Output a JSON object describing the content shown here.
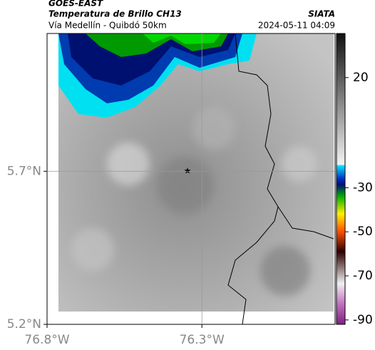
{
  "header": {
    "title": "GOES-EAST",
    "subtitle": "Temperatura de Brillo CH13",
    "source": "SIATA",
    "region": "Vía Medellín - Quibdó 50km",
    "timestamp": "2024-05-11 04:09"
  },
  "map": {
    "xlim": [
      -76.8,
      -75.87
    ],
    "ylim": [
      5.2,
      6.15
    ],
    "xticks": [
      {
        "value": -76.8,
        "label": "76.8°W"
      },
      {
        "value": -76.3,
        "label": "76.3°W"
      }
    ],
    "yticks": [
      {
        "value": 5.2,
        "label": "5.2°N"
      },
      {
        "value": 5.7,
        "label": "5.7°N"
      }
    ],
    "colorbar": {
      "lim": [
        -92,
        40
      ],
      "ticks": [
        20,
        -30,
        -50,
        -70,
        -90
      ]
    }
  }
}
